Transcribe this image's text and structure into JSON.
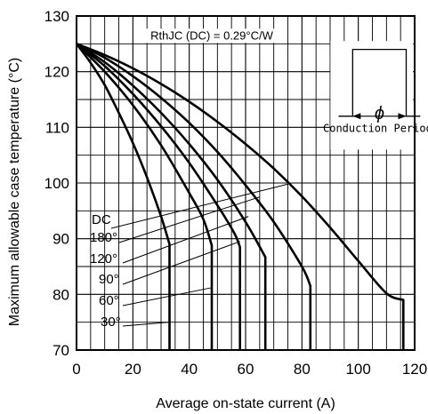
{
  "chart_data": {
    "type": "line",
    "xlabel": "Average on-state current (A)",
    "ylabel": "Maximum allowable case temperature (°C)",
    "xlim": [
      0,
      120
    ],
    "ylim": [
      70,
      130
    ],
    "x_ticks": [
      "0",
      "20",
      "40",
      "60",
      "80",
      "100",
      "120"
    ],
    "y_ticks": [
      "70",
      "80",
      "90",
      "100",
      "110",
      "120",
      "130"
    ],
    "x_tick_values": [
      0,
      20,
      40,
      60,
      80,
      100,
      120
    ],
    "y_tick_values": [
      70,
      80,
      90,
      100,
      110,
      120,
      130
    ],
    "grid": true,
    "annotation": "RthJC (DC) = 0.29°C/W",
    "inset": {
      "symbol": "ϕ",
      "caption": "Conduction Period"
    },
    "series": [
      {
        "name": "30°",
        "points": [
          [
            0,
            125
          ],
          [
            5,
            121.6
          ],
          [
            10,
            117.6
          ],
          [
            15,
            112.6
          ],
          [
            20,
            107.2
          ],
          [
            25,
            101
          ],
          [
            30,
            94
          ],
          [
            33,
            89
          ]
        ],
        "drop_to": 70
      },
      {
        "name": "60°",
        "points": [
          [
            0,
            125
          ],
          [
            10,
            120
          ],
          [
            20,
            114
          ],
          [
            30,
            106.8
          ],
          [
            40,
            98.2
          ],
          [
            45,
            93.5
          ],
          [
            48,
            88.8
          ]
        ],
        "drop_to": 70
      },
      {
        "name": "90°",
        "points": [
          [
            0,
            125
          ],
          [
            10,
            121
          ],
          [
            20,
            116
          ],
          [
            30,
            110.2
          ],
          [
            40,
            103.6
          ],
          [
            50,
            96
          ],
          [
            56,
            91
          ],
          [
            58,
            88.5
          ]
        ],
        "drop_to": 70
      },
      {
        "name": "120°",
        "points": [
          [
            0,
            125
          ],
          [
            10,
            121.7
          ],
          [
            20,
            117.5
          ],
          [
            30,
            112.6
          ],
          [
            40,
            107
          ],
          [
            50,
            100.6
          ],
          [
            60,
            93
          ],
          [
            67,
            86.7
          ]
        ],
        "drop_to": 70
      },
      {
        "name": "180°",
        "points": [
          [
            0,
            125
          ],
          [
            10,
            122.5
          ],
          [
            20,
            119.2
          ],
          [
            30,
            115.3
          ],
          [
            40,
            110.8
          ],
          [
            50,
            105.6
          ],
          [
            60,
            99.6
          ],
          [
            70,
            93
          ],
          [
            80,
            85
          ],
          [
            83,
            81.5
          ]
        ],
        "drop_to": 70
      },
      {
        "name": "DC",
        "points": [
          [
            0,
            125
          ],
          [
            10,
            123
          ],
          [
            20,
            120.6
          ],
          [
            30,
            117.8
          ],
          [
            40,
            114.6
          ],
          [
            50,
            111
          ],
          [
            60,
            107
          ],
          [
            70,
            102.6
          ],
          [
            80,
            97.6
          ],
          [
            90,
            92
          ],
          [
            100,
            86
          ],
          [
            110,
            80.2
          ],
          [
            116,
            79
          ]
        ],
        "drop_to": 70
      }
    ],
    "series_labels": [
      "DC",
      "180°",
      "120°",
      "90°",
      "60°",
      "30°"
    ]
  }
}
